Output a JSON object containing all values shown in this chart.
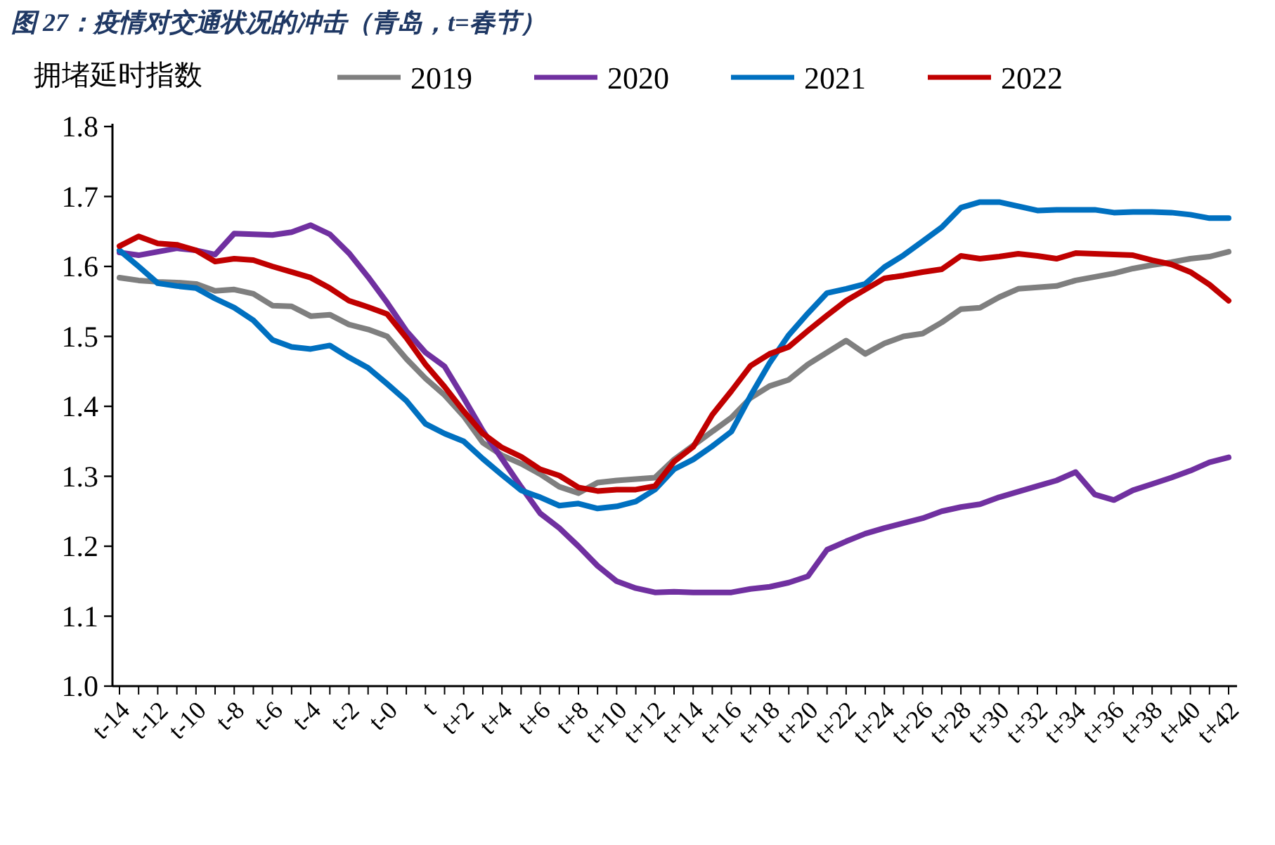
{
  "chart_data": {
    "type": "line",
    "title": "图 27：疫情对交通状况的冲击（青岛，t=春节）",
    "ylabel": "拥堵延时指数",
    "categories": [
      "t-14",
      null,
      "t-12",
      null,
      "t-10",
      null,
      "t-8",
      null,
      "t-6",
      null,
      "t-4",
      null,
      "t-2",
      null,
      "t-0",
      null,
      "t",
      null,
      "t+2",
      null,
      "t+4",
      null,
      "t+6",
      null,
      "t+8",
      null,
      "t+10",
      null,
      "t+12",
      null,
      "t+14",
      null,
      "t+16",
      null,
      "t+18",
      null,
      "t+20",
      null,
      "t+22",
      null,
      "t+24",
      null,
      "t+26",
      null,
      "t+28",
      null,
      "t+30",
      null,
      "t+32",
      null,
      "t+34",
      null,
      "t+36",
      null,
      "t+38",
      null,
      "t+40",
      null,
      "t+42"
    ],
    "series": [
      {
        "name": "2019",
        "color": "#7f7f7f",
        "values": [
          1.584,
          1.58,
          1.578,
          1.577,
          1.575,
          1.565,
          1.567,
          1.561,
          1.544,
          1.543,
          1.529,
          1.531,
          1.517,
          1.51,
          1.5,
          1.468,
          1.44,
          1.416,
          1.386,
          1.348,
          1.33,
          1.318,
          1.303,
          1.285,
          1.276,
          1.291,
          1.294,
          1.296,
          1.298,
          1.324,
          1.344,
          1.364,
          1.384,
          1.412,
          1.429,
          1.438,
          1.46,
          1.477,
          1.494,
          1.475,
          1.49,
          1.5,
          1.504,
          1.52,
          1.539,
          1.541,
          1.556,
          1.568,
          1.57,
          1.572,
          1.58,
          1.585,
          1.59,
          1.597,
          1.602,
          1.606,
          1.611,
          1.614,
          1.621
        ]
      },
      {
        "name": "2020",
        "color": "#7030a0",
        "values": [
          1.62,
          1.616,
          1.621,
          1.626,
          1.623,
          1.617,
          1.647,
          1.646,
          1.645,
          1.649,
          1.659,
          1.646,
          1.619,
          1.585,
          1.548,
          1.508,
          1.477,
          1.457,
          1.412,
          1.365,
          1.325,
          1.285,
          1.247,
          1.226,
          1.2,
          1.172,
          1.15,
          1.14,
          1.134,
          1.135,
          1.134,
          1.134,
          1.134,
          1.139,
          1.142,
          1.148,
          1.157,
          1.195,
          1.207,
          1.218,
          1.226,
          1.233,
          1.24,
          1.25,
          1.256,
          1.26,
          1.27,
          1.278,
          1.286,
          1.294,
          1.306,
          1.274,
          1.266,
          1.28,
          1.289,
          1.298,
          1.308,
          1.32,
          1.327
        ]
      },
      {
        "name": "2021",
        "color": "#0070c0",
        "values": [
          1.623,
          1.6,
          1.576,
          1.572,
          1.569,
          1.554,
          1.541,
          1.523,
          1.495,
          1.485,
          1.482,
          1.487,
          1.47,
          1.455,
          1.432,
          1.408,
          1.375,
          1.361,
          1.35,
          1.325,
          1.302,
          1.28,
          1.27,
          1.258,
          1.261,
          1.254,
          1.257,
          1.264,
          1.281,
          1.31,
          1.324,
          1.343,
          1.364,
          1.415,
          1.462,
          1.502,
          1.533,
          1.562,
          1.568,
          1.575,
          1.599,
          1.616,
          1.636,
          1.656,
          1.684,
          1.692,
          1.692,
          1.686,
          1.68,
          1.681,
          1.681,
          1.681,
          1.677,
          1.678,
          1.678,
          1.677,
          1.674,
          1.669,
          1.669
        ]
      },
      {
        "name": "2022",
        "color": "#c00000",
        "values": [
          1.629,
          1.643,
          1.633,
          1.631,
          1.623,
          1.607,
          1.611,
          1.609,
          1.6,
          1.592,
          1.584,
          1.569,
          1.551,
          1.542,
          1.532,
          1.498,
          1.46,
          1.428,
          1.393,
          1.361,
          1.341,
          1.328,
          1.31,
          1.301,
          1.284,
          1.279,
          1.281,
          1.281,
          1.286,
          1.321,
          1.342,
          1.388,
          1.422,
          1.458,
          1.475,
          1.485,
          1.508,
          1.53,
          1.551,
          1.567,
          1.583,
          1.587,
          1.592,
          1.596,
          1.615,
          1.611,
          1.614,
          1.618,
          1.615,
          1.611,
          1.619,
          1.618,
          1.617,
          1.616,
          1.609,
          1.603,
          1.592,
          1.574,
          1.551
        ]
      }
    ],
    "ylim": [
      1.0,
      1.8
    ],
    "yticks": [
      {
        "value": 1,
        "label": "1.0"
      },
      1.1,
      1.2,
      1.3,
      1.4,
      1.5,
      1.6,
      1.7,
      1.8
    ],
    "legend": "top",
    "grid": false,
    "marker": "none",
    "line_style": "solid"
  }
}
